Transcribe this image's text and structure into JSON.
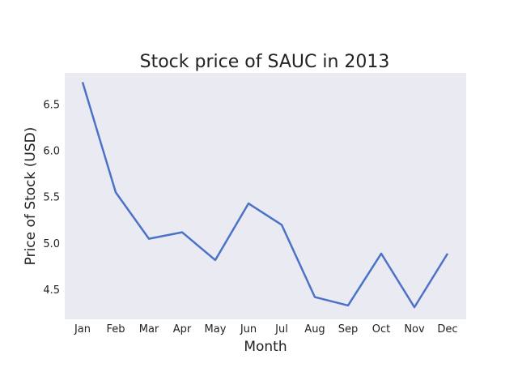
{
  "chart_data": {
    "type": "line",
    "title": "Stock price of SAUC in 2013",
    "xlabel": "Month",
    "ylabel": "Price of Stock (USD)",
    "categories": [
      "Jan",
      "Feb",
      "Mar",
      "Apr",
      "May",
      "Jun",
      "Jul",
      "Aug",
      "Sep",
      "Oct",
      "Nov",
      "Dec"
    ],
    "series": [
      {
        "values": [
          6.74,
          5.55,
          5.05,
          5.12,
          4.82,
          5.43,
          5.2,
          4.42,
          4.33,
          4.89,
          4.31,
          4.89
        ],
        "color": "#4c72c8"
      }
    ],
    "ylim": [
      4.18,
      6.84
    ],
    "yticks": [
      4.5,
      5.0,
      5.5,
      6.0,
      6.5
    ],
    "ytick_labels": [
      "4.5",
      "5.0",
      "5.5",
      "6.0",
      "6.5"
    ],
    "grid": false,
    "background_color": "#eaeaf2"
  }
}
